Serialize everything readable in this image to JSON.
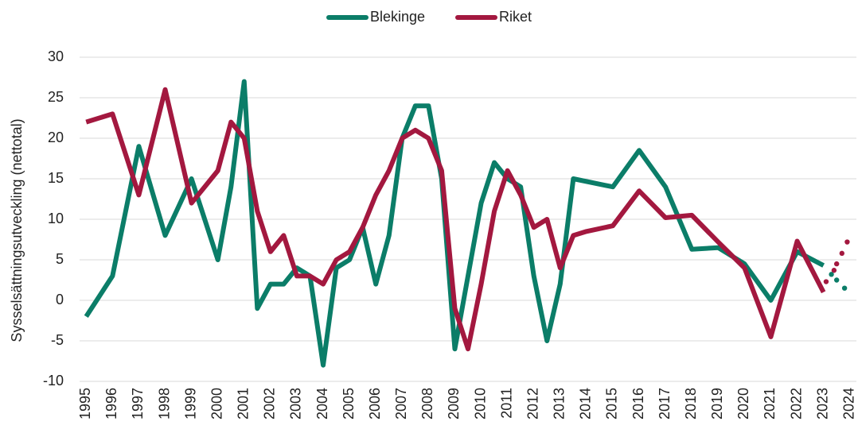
{
  "chart_data": {
    "type": "line",
    "y_label": "Sysselsättningsutveckling (nettotal)",
    "xlim": [
      1994.75,
      2024.25
    ],
    "xticks": [
      1995,
      1996,
      1997,
      1998,
      1999,
      2000,
      2001,
      2002,
      2003,
      2004,
      2005,
      2006,
      2007,
      2008,
      2009,
      2010,
      2011,
      2012,
      2013,
      2014,
      2015,
      2016,
      2017,
      2018,
      2019,
      2020,
      2021,
      2022,
      2023,
      2024
    ],
    "ylim": [
      -10,
      30
    ],
    "yticks": [
      -10,
      -5,
      0,
      5,
      10,
      15,
      20,
      25,
      30
    ],
    "grid": true,
    "legend": "top",
    "series": [
      {
        "name": "Blekinge",
        "color": "#0b7d68",
        "x": [
          1995,
          1996,
          1997,
          1998,
          1999,
          2000,
          2000.5,
          2001,
          2001.5,
          2002,
          2002.5,
          2003,
          2003.5,
          2004,
          2004.5,
          2005,
          2005.5,
          2006,
          2006.5,
          2007,
          2007.5,
          2008,
          2008.5,
          2009,
          2010,
          2010.5,
          2011,
          2011.5,
          2012,
          2012.5,
          2013,
          2013.5,
          2015,
          2016,
          2017,
          2018,
          2019,
          2020,
          2021,
          2022,
          2023
        ],
        "values": [
          -2,
          3,
          19,
          8,
          15,
          5,
          14,
          27,
          -1,
          2,
          2,
          4,
          3,
          -8,
          4,
          5,
          9,
          2,
          8,
          20,
          24,
          24,
          15,
          -6,
          12,
          17,
          15,
          14,
          3,
          -5,
          2,
          15,
          14,
          18.5,
          14,
          6.3,
          6.5,
          4.5,
          0,
          6,
          4.3
        ],
        "forecast_x": [
          2023.3,
          2023.5,
          2023.8
        ],
        "forecast_values": [
          3.2,
          2.5,
          1.5
        ]
      },
      {
        "name": "Riket",
        "color": "#a3183f",
        "x": [
          1995,
          1996,
          1997,
          1998,
          1999,
          2000,
          2000.5,
          2001,
          2001.5,
          2002,
          2002.5,
          2003,
          2003.5,
          2004,
          2004.5,
          2005,
          2005.5,
          2006,
          2006.5,
          2007,
          2007.5,
          2008,
          2008.5,
          2009,
          2009.5,
          2010,
          2010.5,
          2011,
          2011.5,
          2012,
          2012.5,
          2013,
          2013.5,
          2014,
          2015,
          2016,
          2017,
          2018,
          2019,
          2020,
          2021,
          2022,
          2023
        ],
        "values": [
          22,
          23,
          13,
          26,
          12,
          16,
          22,
          20,
          11,
          6,
          8,
          3,
          3,
          2,
          5,
          6,
          9,
          13,
          16,
          20,
          21,
          20,
          16,
          -1,
          -6,
          2,
          11,
          16,
          13,
          9,
          10,
          4,
          8,
          8.5,
          9.2,
          13.5,
          10.2,
          10.5,
          7.2,
          4,
          -4.5,
          7.3,
          1
        ],
        "forecast_x": [
          2023.1,
          2023.4,
          2023.5,
          2023.7,
          2023.9
        ],
        "forecast_values": [
          2.3,
          3.7,
          4.5,
          5.8,
          7.2
        ]
      }
    ]
  }
}
